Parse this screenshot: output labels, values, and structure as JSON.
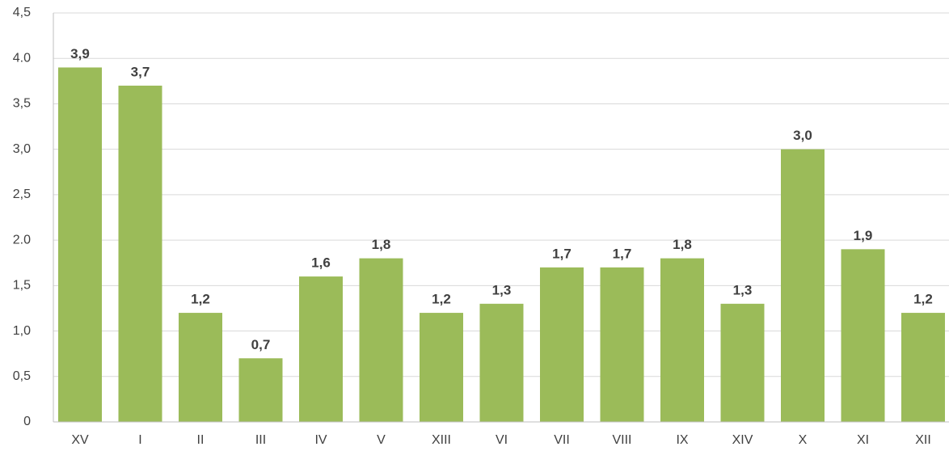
{
  "chart_data": {
    "type": "bar",
    "categories": [
      "XV",
      "I",
      "II",
      "III",
      "IV",
      "V",
      "XIII",
      "VI",
      "VII",
      "VIII",
      "IX",
      "XIV",
      "X",
      "XI",
      "XII"
    ],
    "values": [
      3.9,
      3.7,
      1.2,
      0.7,
      1.6,
      1.8,
      1.2,
      1.3,
      1.7,
      1.7,
      1.8,
      1.3,
      3.0,
      1.9,
      1.2
    ],
    "value_labels": [
      "3,9",
      "3,7",
      "1,2",
      "0,7",
      "1,6",
      "1,8",
      "1,2",
      "1,3",
      "1,7",
      "1,7",
      "1,8",
      "1,3",
      "3,0",
      "1,9",
      "1,2"
    ],
    "color": "#9bbb59",
    "ylim": [
      0,
      4.5
    ],
    "yticks": [
      0,
      {
        "value": 0.5,
        "label": "0,5"
      },
      {
        "value": 1.0,
        "label": "1,0"
      },
      {
        "value": 1.5,
        "label": "1,5"
      },
      {
        "value": 2.0,
        "label": "2.0"
      },
      {
        "value": 2.5,
        "label": "2,5"
      },
      {
        "value": 3.0,
        "label": "3,0"
      },
      {
        "value": 3.5,
        "label": "3,5"
      },
      {
        "value": 4.0,
        "label": "4.0"
      },
      {
        "value": 4.5,
        "label": "4,5"
      }
    ],
    "grid": true
  }
}
